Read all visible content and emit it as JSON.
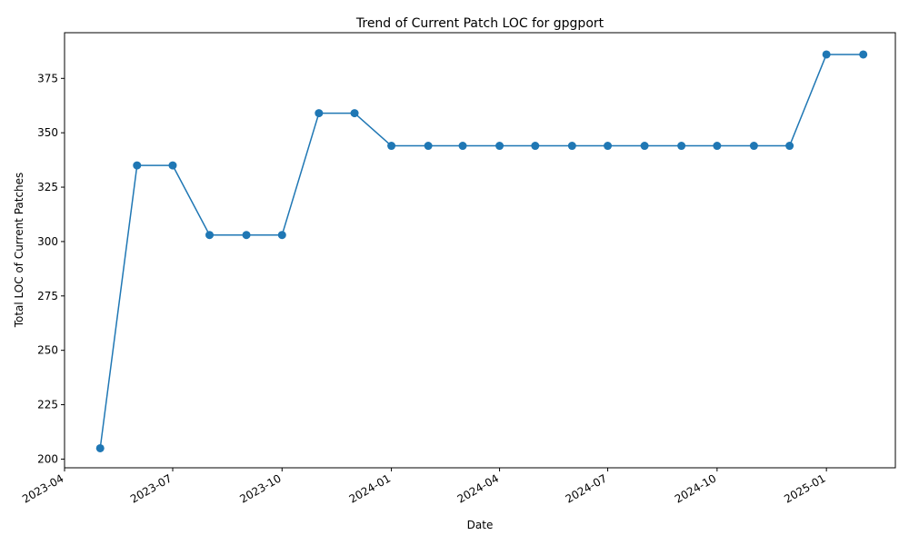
{
  "chart_data": {
    "type": "line",
    "title": "Trend of Current Patch LOC for gpgport",
    "xlabel": "Date",
    "ylabel": "Total LOC of Current Patches",
    "x_ticks": [
      "2023-04",
      "2023-07",
      "2023-10",
      "2024-01",
      "2024-04",
      "2024-07",
      "2024-10",
      "2025-01"
    ],
    "y_ticks": [
      200,
      225,
      250,
      275,
      300,
      325,
      350,
      375
    ],
    "x_range": [
      "2023-04-01",
      "2025-02-28"
    ],
    "ylim": [
      196,
      396
    ],
    "grid": false,
    "colors": {
      "line": "#1f77b4",
      "marker": "#1f77b4"
    },
    "series": [
      {
        "x": [
          "2023-05-01",
          "2023-06-01",
          "2023-07-01",
          "2023-08-01",
          "2023-09-01",
          "2023-10-01",
          "2023-11-01",
          "2023-12-01",
          "2024-01-01",
          "2024-02-01",
          "2024-03-01",
          "2024-04-01",
          "2024-05-01",
          "2024-06-01",
          "2024-07-01",
          "2024-08-01",
          "2024-09-01",
          "2024-10-01",
          "2024-11-01",
          "2024-12-01",
          "2025-01-01",
          "2025-02-01"
        ],
        "values": [
          205,
          335,
          335,
          303,
          303,
          303,
          359,
          359,
          344,
          344,
          344,
          344,
          344,
          344,
          344,
          344,
          344,
          344,
          344,
          344,
          386,
          386
        ]
      }
    ]
  }
}
